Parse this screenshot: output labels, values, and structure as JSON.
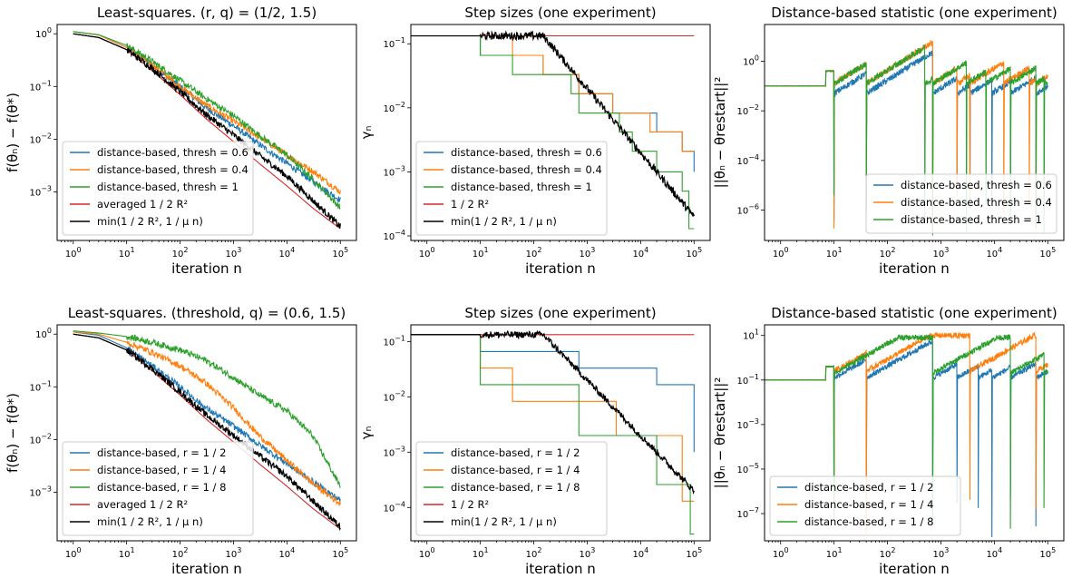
{
  "colors": {
    "blue": "#1f77b4",
    "orange": "#ff7f0e",
    "green": "#2ca02c",
    "red": "#d62728",
    "black": "#000000"
  },
  "chart_data": [
    {
      "type": "line",
      "title": "Least-squares. (r, q) = (1/2, 1.5)",
      "xlabel": "iteration n",
      "ylabel": "f(θₙ) − f(θ*)",
      "xscale": "log",
      "yscale": "log",
      "xlim": [
        0.5,
        200000
      ],
      "ylim": [
        0.00012,
        1.5
      ],
      "xticks": [
        "10^0",
        "10^1",
        "10^2",
        "10^3",
        "10^4",
        "10^5"
      ],
      "yticks": [
        "10^-3",
        "10^-2",
        "10^-1",
        "10^0"
      ],
      "legend": "lower-left",
      "series": [
        {
          "name": "distance-based, thresh = 0.6",
          "color": "blue",
          "x": [
            1,
            3,
            10,
            30,
            100,
            300,
            1000,
            3000,
            10000,
            30000,
            100000
          ],
          "y": [
            1.1,
            0.95,
            0.55,
            0.25,
            0.1,
            0.04,
            0.018,
            0.008,
            0.0035,
            0.0016,
            0.0007
          ]
        },
        {
          "name": "distance-based, thresh = 0.4",
          "color": "orange",
          "x": [
            1,
            3,
            10,
            30,
            100,
            300,
            1000,
            3000,
            10000,
            30000,
            100000
          ],
          "y": [
            1.1,
            0.95,
            0.55,
            0.26,
            0.1,
            0.045,
            0.022,
            0.011,
            0.005,
            0.0025,
            0.001
          ]
        },
        {
          "name": "distance-based,  thresh = 1",
          "color": "green",
          "x": [
            1,
            3,
            10,
            30,
            100,
            300,
            1000,
            3000,
            10000,
            30000,
            100000
          ],
          "y": [
            1.1,
            0.96,
            0.6,
            0.3,
            0.13,
            0.06,
            0.028,
            0.012,
            0.005,
            0.0018,
            0.0005
          ]
        },
        {
          "name": "averaged 1 / 2 R²",
          "color": "red",
          "x": [
            1,
            3,
            10,
            30,
            100,
            300,
            1000,
            3000,
            10000,
            30000,
            100000
          ],
          "y": [
            1.0,
            0.85,
            0.5,
            0.2,
            0.07,
            0.025,
            0.009,
            0.0035,
            0.0013,
            0.0005,
            0.0002
          ]
        },
        {
          "name": "min(1 / 2 R², 1 / μ n)",
          "color": "black",
          "x": [
            1,
            3,
            10,
            30,
            100,
            300,
            1000,
            3000,
            10000,
            30000,
            100000
          ],
          "y": [
            1.0,
            0.85,
            0.5,
            0.22,
            0.08,
            0.03,
            0.012,
            0.005,
            0.002,
            0.0007,
            0.00022
          ]
        }
      ]
    },
    {
      "type": "line",
      "title": "Step sizes (one experiment)",
      "xlabel": "iteration n",
      "ylabel": "γₙ",
      "xscale": "log",
      "yscale": "log",
      "xlim": [
        0.5,
        200000
      ],
      "ylim": [
        8.5e-05,
        0.2
      ],
      "xticks": [
        "10^0",
        "10^1",
        "10^2",
        "10^3",
        "10^4",
        "10^5"
      ],
      "yticks": [
        "10^-4",
        "10^-3",
        "10^-2",
        "10^-1"
      ],
      "legend": "lower-left",
      "series": [
        {
          "name": "distance-based, thresh = 0.6",
          "color": "blue",
          "step": true,
          "x": [
            0.5,
            10,
            150,
            700,
            3000,
            20000,
            60000,
            100000
          ],
          "y": [
            0.133,
            0.066,
            0.033,
            0.0166,
            0.0083,
            0.0042,
            0.0021,
            0.001
          ]
        },
        {
          "name": "distance-based, thresh = 0.4",
          "color": "orange",
          "step": true,
          "x": [
            0.5,
            40,
            150,
            700,
            3000,
            15000,
            60000,
            100000
          ],
          "y": [
            0.133,
            0.066,
            0.033,
            0.0166,
            0.0083,
            0.0042,
            0.0021,
            0.0021
          ]
        },
        {
          "name": "distance-based,  thresh = 1",
          "color": "green",
          "step": true,
          "x": [
            0.5,
            10,
            40,
            500,
            700,
            4000,
            7000,
            20000,
            60000,
            80000,
            100000
          ],
          "y": [
            0.133,
            0.066,
            0.033,
            0.0166,
            0.0083,
            0.0042,
            0.0021,
            0.001,
            0.0005,
            0.00013,
            0.00013
          ]
        },
        {
          "name": "1 / 2 R²",
          "color": "red",
          "x": [
            0.5,
            100000
          ],
          "y": [
            0.133,
            0.133
          ]
        },
        {
          "name": "min(1 / 2 R², 1 / μ n)",
          "color": "black",
          "x": [
            0.5,
            150,
            100000
          ],
          "y": [
            0.133,
            0.133,
            0.0002
          ]
        }
      ]
    },
    {
      "type": "line",
      "title": "Distance-based statistic (one experiment)",
      "xlabel": "iteration n",
      "ylabel": "||θₙ − θrestart||²",
      "xscale": "log",
      "yscale": "log",
      "xlim": [
        0.5,
        200000
      ],
      "ylim": [
        6e-08,
        30
      ],
      "xticks": [
        "10^0",
        "10^1",
        "10^2",
        "10^3",
        "10^4",
        "10^5"
      ],
      "yticks": [
        "10^-6",
        "10^-4",
        "10^-2",
        "10^0"
      ],
      "legend": "lower-right",
      "series": [
        {
          "name": "distance-based, thresh = 0.6",
          "color": "blue",
          "restarts": [
            10,
            40,
            700,
            2000,
            3500,
            9000,
            20000,
            60000
          ],
          "y_start": 0.1,
          "y_pre": 0.4,
          "y_max": 2.0
        },
        {
          "name": "distance-based, thresh = 0.4",
          "color": "orange",
          "restarts": [
            10,
            40,
            700,
            2000,
            3500,
            15000,
            45000,
            60000
          ],
          "y_start": 0.1,
          "y_pre": 0.4,
          "y_max": 5.0
        },
        {
          "name": "distance-based,  thresh = 1",
          "color": "green",
          "restarts": [
            10,
            40,
            500,
            700,
            3000,
            7000,
            20000,
            60000,
            85000
          ],
          "y_start": 0.1,
          "y_pre": 0.4,
          "y_max": 5.0
        }
      ]
    },
    {
      "type": "line",
      "title": "Least-squares. (threshold, q) = (0.6, 1.5)",
      "xlabel": "iteration n",
      "ylabel": "f(θₙ) − f(θ*)",
      "xscale": "log",
      "yscale": "log",
      "xlim": [
        0.5,
        200000
      ],
      "ylim": [
        0.00012,
        1.5
      ],
      "xticks": [
        "10^0",
        "10^1",
        "10^2",
        "10^3",
        "10^4",
        "10^5"
      ],
      "yticks": [
        "10^-3",
        "10^-2",
        "10^-1",
        "10^0"
      ],
      "legend": "lower-left",
      "series": [
        {
          "name": "distance-based, r = 1 / 2",
          "color": "blue",
          "x": [
            1,
            3,
            10,
            30,
            100,
            300,
            1000,
            3000,
            10000,
            30000,
            100000
          ],
          "y": [
            1.1,
            0.95,
            0.55,
            0.25,
            0.1,
            0.04,
            0.018,
            0.008,
            0.0035,
            0.0016,
            0.0007
          ]
        },
        {
          "name": "distance-based, r = 1 / 4",
          "color": "orange",
          "x": [
            1,
            3,
            10,
            30,
            100,
            300,
            1000,
            3000,
            10000,
            30000,
            100000
          ],
          "y": [
            1.1,
            1.0,
            0.7,
            0.45,
            0.25,
            0.12,
            0.04,
            0.012,
            0.004,
            0.0015,
            0.0006
          ]
        },
        {
          "name": "distance-based, r = 1 / 8",
          "color": "green",
          "x": [
            1,
            3,
            10,
            30,
            100,
            300,
            1000,
            3000,
            10000,
            30000,
            100000
          ],
          "y": [
            1.15,
            1.05,
            0.9,
            0.7,
            0.5,
            0.32,
            0.15,
            0.07,
            0.035,
            0.012,
            0.0013
          ]
        },
        {
          "name": "averaged 1 / 2 R²",
          "color": "red",
          "x": [
            1,
            3,
            10,
            30,
            100,
            300,
            1000,
            3000,
            10000,
            30000,
            100000
          ],
          "y": [
            1.0,
            0.85,
            0.5,
            0.2,
            0.07,
            0.025,
            0.009,
            0.0035,
            0.0013,
            0.0005,
            0.0002
          ]
        },
        {
          "name": "min(1 / 2 R², 1 / μ n)",
          "color": "black",
          "x": [
            1,
            3,
            10,
            30,
            100,
            300,
            1000,
            3000,
            10000,
            30000,
            100000
          ],
          "y": [
            1.0,
            0.85,
            0.5,
            0.22,
            0.08,
            0.03,
            0.012,
            0.005,
            0.002,
            0.0007,
            0.00022
          ]
        }
      ]
    },
    {
      "type": "line",
      "title": "Step sizes (one experiment)",
      "xlabel": "iteration n",
      "ylabel": "γₙ",
      "xscale": "log",
      "yscale": "log",
      "xlim": [
        0.5,
        200000
      ],
      "ylim": [
        2.5e-05,
        0.2
      ],
      "xticks": [
        "10^0",
        "10^1",
        "10^2",
        "10^3",
        "10^4",
        "10^5"
      ],
      "yticks": [
        "10^-4",
        "10^-3",
        "10^-2",
        "10^-1"
      ],
      "legend": "lower-left",
      "series": [
        {
          "name": "distance-based, r = 1 / 2",
          "color": "blue",
          "step": true,
          "x": [
            0.5,
            10,
            700,
            20000,
            100000
          ],
          "y": [
            0.133,
            0.066,
            0.033,
            0.0166,
            0.001
          ]
        },
        {
          "name": "distance-based, r = 1 / 4",
          "color": "orange",
          "step": true,
          "x": [
            0.5,
            10,
            40,
            3500,
            60000,
            100000
          ],
          "y": [
            0.133,
            0.033,
            0.0083,
            0.002,
            0.00013,
            0.00013
          ]
        },
        {
          "name": "distance-based, r = 1 / 8",
          "color": "green",
          "step": true,
          "x": [
            0.5,
            10,
            700,
            20000,
            85000,
            100000
          ],
          "y": [
            0.133,
            0.0166,
            0.002,
            0.00026,
            3.3e-05,
            3.3e-05
          ]
        },
        {
          "name": "1 / 2 R²",
          "color": "red",
          "x": [
            0.5,
            100000
          ],
          "y": [
            0.133,
            0.133
          ]
        },
        {
          "name": "min(1 / 2 R², 1 / μ n)",
          "color": "black",
          "x": [
            0.5,
            150,
            100000
          ],
          "y": [
            0.133,
            0.133,
            0.0002
          ]
        }
      ]
    },
    {
      "type": "line",
      "title": "Distance-based statistic (one experiment)",
      "xlabel": "iteration n",
      "ylabel": "||θₙ − θrestart||²",
      "xscale": "log",
      "yscale": "log",
      "xlim": [
        0.5,
        200000
      ],
      "ylim": [
        6e-09,
        30
      ],
      "xticks": [
        "10^0",
        "10^1",
        "10^2",
        "10^3",
        "10^4",
        "10^5"
      ],
      "yticks": [
        "10^-7",
        "10^-5",
        "10^-3",
        "10^-1",
        "10^1"
      ],
      "legend": "lower-left",
      "series": [
        {
          "name": "distance-based, r = 1 / 2",
          "color": "blue",
          "restarts": [
            10,
            40,
            700,
            2000,
            5000,
            9000,
            20000,
            60000
          ],
          "y_start": 0.1,
          "y_pre": 0.4,
          "y_max": 5.0
        },
        {
          "name": "distance-based, r = 1 / 4",
          "color": "orange",
          "restarts": [
            10,
            40,
            3500,
            60000
          ],
          "y_start": 0.1,
          "y_pre": 0.4,
          "y_max": 10.0
        },
        {
          "name": "distance-based, r = 1 / 8",
          "color": "green",
          "restarts": [
            10,
            700,
            20000,
            85000
          ],
          "y_start": 0.1,
          "y_pre": 0.4,
          "y_max": 8.0
        }
      ]
    }
  ]
}
